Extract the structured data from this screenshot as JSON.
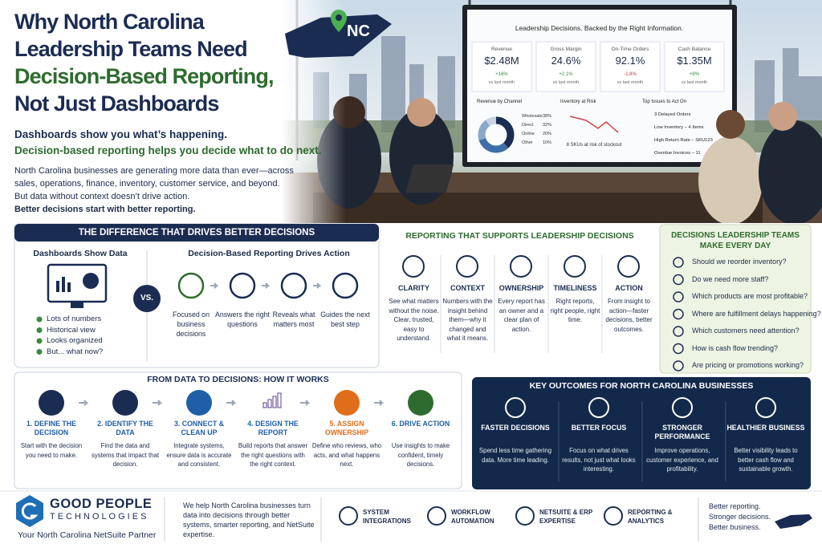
{
  "header": {
    "title_lines": [
      "Why North Carolina",
      "Leadership Teams Need",
      "Decision-Based Reporting,",
      "Not Just Dashboards"
    ],
    "badge": "NC",
    "subtitle_lines": [
      "Dashboards show you what’s happening.",
      "Decision-based reporting helps you decide what to do next."
    ],
    "body": [
      "North Carolina businesses are generating more data than ever—across sales, operations, finance, inventory, customer service, and beyond.",
      "But data without context doesn’t drive action.",
      "Better decisions start with better reporting."
    ]
  },
  "screen": {
    "title": "Leadership Decisions. Backed by the Right Information.",
    "kpis": [
      {
        "label": "Revenue",
        "value": "$2.48M",
        "change": "+16%",
        "note": "vs last month"
      },
      {
        "label": "Gross Margin",
        "value": "24.6%",
        "change": "+2.1%",
        "note": "vs last month"
      },
      {
        "label": "On-Time Orders",
        "value": "92.1%",
        "change": "-1.8%",
        "note": "vs last month"
      },
      {
        "label": "Cash Balance",
        "value": "$1.35M",
        "change": "+8%",
        "note": "vs last month"
      }
    ],
    "channels": {
      "title": "Revenue by Channel",
      "names": [
        "Wholesale",
        "Direct",
        "Online",
        "Other"
      ],
      "values": [
        38,
        32,
        20,
        10
      ],
      "value_labels": [
        "38%",
        "32%",
        "20%",
        "10%"
      ]
    },
    "inventory": {
      "title": "Inventory at Risk",
      "note": "8 SKUs at risk of stockout"
    },
    "issues": {
      "title": "Top Issues to Act On",
      "items": [
        "3 Delayed Orders",
        "Low Inventory – 4 Items",
        "High Return Rate – SKU123",
        "Overdue Invoices – 11"
      ]
    }
  },
  "difference": {
    "title": "THE DIFFERENCE THAT DRIVES BETTER DECISIONS",
    "left_heading": "Dashboards Show Data",
    "left_items": [
      "Lots of numbers",
      "Historical view",
      "Looks organized",
      "But... what now?"
    ],
    "vs": "VS.",
    "right_heading": "Decision-Based Reporting Drives Action",
    "steps": [
      "Focused on business decisions",
      "Answers the right questions",
      "Reveals what matters most",
      "Guides the next best step"
    ]
  },
  "support": {
    "title": "REPORTING THAT SUPPORTS LEADERSHIP DECISIONS",
    "items": [
      {
        "title": "CLARITY",
        "text": "See what matters without the noise. Clear, trusted, easy to understand."
      },
      {
        "title": "CONTEXT",
        "text": "Numbers with the insight behind them—why it changed and what it means."
      },
      {
        "title": "OWNERSHIP",
        "text": "Every report has an owner and a clear plan of action."
      },
      {
        "title": "TIMELINESS",
        "text": "Right reports, right people, right time."
      },
      {
        "title": "ACTION",
        "text": "From insight to action—faster decisions, better outcomes."
      }
    ]
  },
  "questions": {
    "title": "DECISIONS LEADERSHIP TEAMS MAKE EVERY DAY",
    "items": [
      "Should we reorder inventory?",
      "Do we need more staff?",
      "Which products are most profitable?",
      "Where are fulfillment delays happening?",
      "Which customers need attention?",
      "How is cash flow trending?",
      "Are pricing or promotions working?"
    ]
  },
  "process": {
    "title": "FROM DATA TO DECISIONS: HOW IT WORKS",
    "steps": [
      {
        "title": "1. DEFINE THE DECISION",
        "text": "Start with the decision you need to make."
      },
      {
        "title": "2. IDENTIFY THE DATA",
        "text": "Find the data and systems that impact that decision."
      },
      {
        "title": "3. CONNECT & CLEAN UP",
        "text": "Integrate systems, ensure data is accurate and consistent."
      },
      {
        "title": "4. DESIGN THE REPORT",
        "text": "Build reports that answer the right questions with the right context."
      },
      {
        "title": "5. ASSIGN OWNERSHIP",
        "text": "Define who reviews, who acts, and what happens next."
      },
      {
        "title": "6. DRIVE ACTION",
        "text": "Use insights to make confident, timely decisions."
      }
    ]
  },
  "outcomes": {
    "title": "KEY OUTCOMES FOR NORTH CAROLINA BUSINESSES",
    "items": [
      {
        "title": "FASTER DECISIONS",
        "text": "Spend less time gathering data. More time leading."
      },
      {
        "title": "BETTER FOCUS",
        "text": "Focus on what drives results, not just what looks interesting."
      },
      {
        "title": "STRONGER PERFORMANCE",
        "text": "Improve operations, customer experience, and profitability."
      },
      {
        "title": "HEALTHIER BUSINESS",
        "text": "Better visibility leads to better cash flow and sustainable growth."
      }
    ]
  },
  "footer": {
    "brand": "GOOD PEOPLE",
    "brand_sub": "TECHNOLOGIES",
    "tagline": "Your North Carolina NetSuite Partner",
    "about": "We help North Carolina businesses turn data into decisions through better systems, smarter reporting, and NetSuite expertise.",
    "services": [
      "SYSTEM INTEGRATIONS",
      "WORKFLOW AUTOMATION",
      "NETSUITE & ERP EXPERTISE",
      "REPORTING & ANALYTICS"
    ],
    "closing": [
      "Better reporting.",
      "Stronger decisions.",
      "Better business."
    ]
  }
}
